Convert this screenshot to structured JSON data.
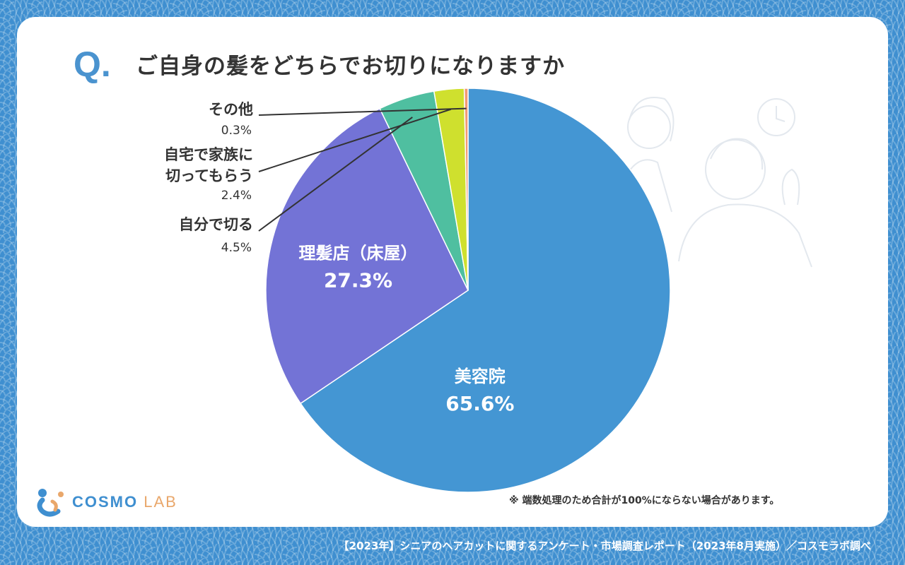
{
  "header": {
    "q_mark": "Q.",
    "question": "ご自身の髪をどちらでお切りになりますか"
  },
  "chart_data": {
    "type": "pie",
    "title": "ご自身の髪をどちらでお切りになりますか",
    "slices": [
      {
        "label": "美容院",
        "value": 65.6,
        "value_label": "65.6%",
        "color": "#4496d3"
      },
      {
        "label": "理髪店（床屋）",
        "value": 27.3,
        "value_label": "27.3%",
        "color": "#7373d6"
      },
      {
        "label": "自分で切る",
        "value": 4.5,
        "value_label": "4.5%",
        "color": "#4fbfa0"
      },
      {
        "label": "自宅で家族に切ってもらう",
        "label_lines": [
          "自宅で家族に",
          "切ってもらう"
        ],
        "value": 2.4,
        "value_label": "2.4%",
        "color": "#cfe02e"
      },
      {
        "label": "その他",
        "value": 0.3,
        "value_label": "0.3%",
        "color": "#f29a73"
      }
    ]
  },
  "note": "※ 端数処理のため合計が100%にならない場合があります。",
  "logo": {
    "text_main": "COSMO",
    "text_sub": "LAB"
  },
  "footer": "【2023年】シニアのヘアカットに関するアンケート・市場調査レポート（2023年8月実施）／コスモラボ調べ",
  "colors": {
    "background": "#3f8fd0",
    "card": "#ffffff",
    "text": "#333333",
    "accent": "#4a93cf"
  }
}
